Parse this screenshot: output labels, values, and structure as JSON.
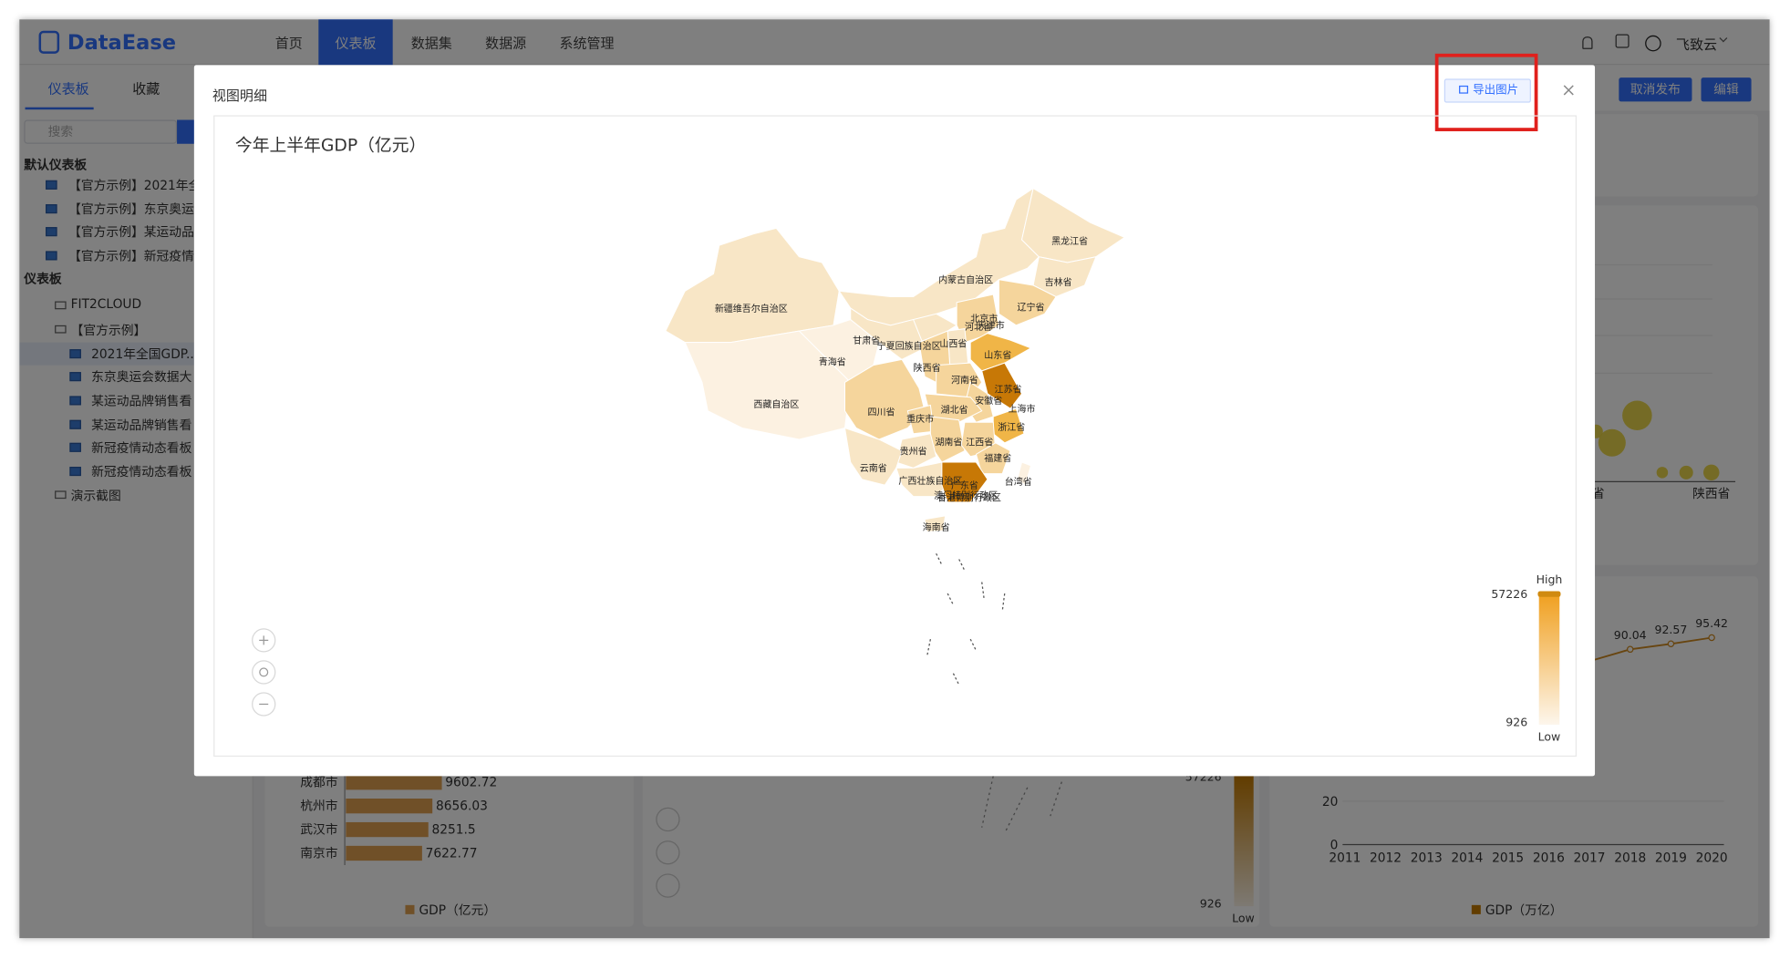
{
  "header": {
    "logo": "DataEase",
    "nav": [
      "首页",
      "仪表板",
      "数据集",
      "数据源",
      "系统管理"
    ],
    "user": "飞致云"
  },
  "sidebar": {
    "tabs": [
      "仪表板",
      "收藏"
    ],
    "search_placeholder": "搜索",
    "default_group": {
      "title": "默认仪表板",
      "items": [
        "【官方示例】2021年全",
        "【官方示例】东京奥运",
        "【官方示例】某运动品",
        "【官方示例】新冠疫情"
      ]
    },
    "dashboard_group": {
      "title": "仪表板",
      "folders": [
        "FIT2CLOUD",
        "【官方示例】"
      ],
      "items": [
        "2021年全国GDP...",
        "东京奥运会数据大",
        "某运动品牌销售看",
        "某运动品牌销售看",
        "新冠疫情动态看板",
        "新冠疫情动态看板"
      ],
      "last_folder": "演示截图"
    }
  },
  "toolbar": {
    "buttons": [
      "取消发布",
      "编辑"
    ]
  },
  "modal": {
    "title": "视图明细",
    "export_button": "导出图片",
    "chart_title": "今年上半年GDP（亿元）",
    "map_labels": [
      "黑龙江省",
      "内蒙古自治区",
      "吉林省",
      "新疆维吾尔自治区",
      "辽宁省",
      "北京市",
      "天津市",
      "河北省",
      "甘肃省",
      "宁夏回族自治区",
      "山西省",
      "山东省",
      "青海省",
      "陕西省",
      "河南省",
      "江苏省",
      "四川省",
      "湖北省",
      "安徽省",
      "上海市",
      "重庆市",
      "浙江省",
      "西藏自治区",
      "湖南省",
      "江西省",
      "贵州省",
      "福建省",
      "云南省",
      "广西壮族自治区",
      "广东省",
      "台湾省",
      "澳门特别行政区",
      "香港特别行政区",
      "海南省"
    ],
    "legend": {
      "high_label": "High",
      "low_label": "Low",
      "max": 57226,
      "min": 926
    }
  },
  "background": {
    "bar_card": {
      "rows": [
        {
          "label": "成都市",
          "value": 9602.72
        },
        {
          "label": "杭州市",
          "value": 8656.03
        },
        {
          "label": "武汉市",
          "value": 8251.5
        },
        {
          "label": "南京市",
          "value": 7622.77
        }
      ],
      "legend": "GDP（亿元）"
    },
    "map_card": {
      "legend_max": 57226,
      "legend_min": 926,
      "low_label": "Low"
    },
    "line_card": {
      "yticks": [
        20,
        0
      ],
      "xticks": [
        "2011",
        "2012",
        "2013",
        "2014",
        "2015",
        "2016",
        "2017",
        "2018",
        "2019",
        "2020"
      ],
      "points": [
        {
          "year_index": 7,
          "value": 90.04
        },
        {
          "year_index": 8,
          "value": 92.57
        },
        {
          "year_index": 9,
          "value": 95.42
        }
      ],
      "legend": "GDP（万亿）"
    },
    "bubble_axis_labels": [
      "省",
      "陕西省"
    ]
  }
}
